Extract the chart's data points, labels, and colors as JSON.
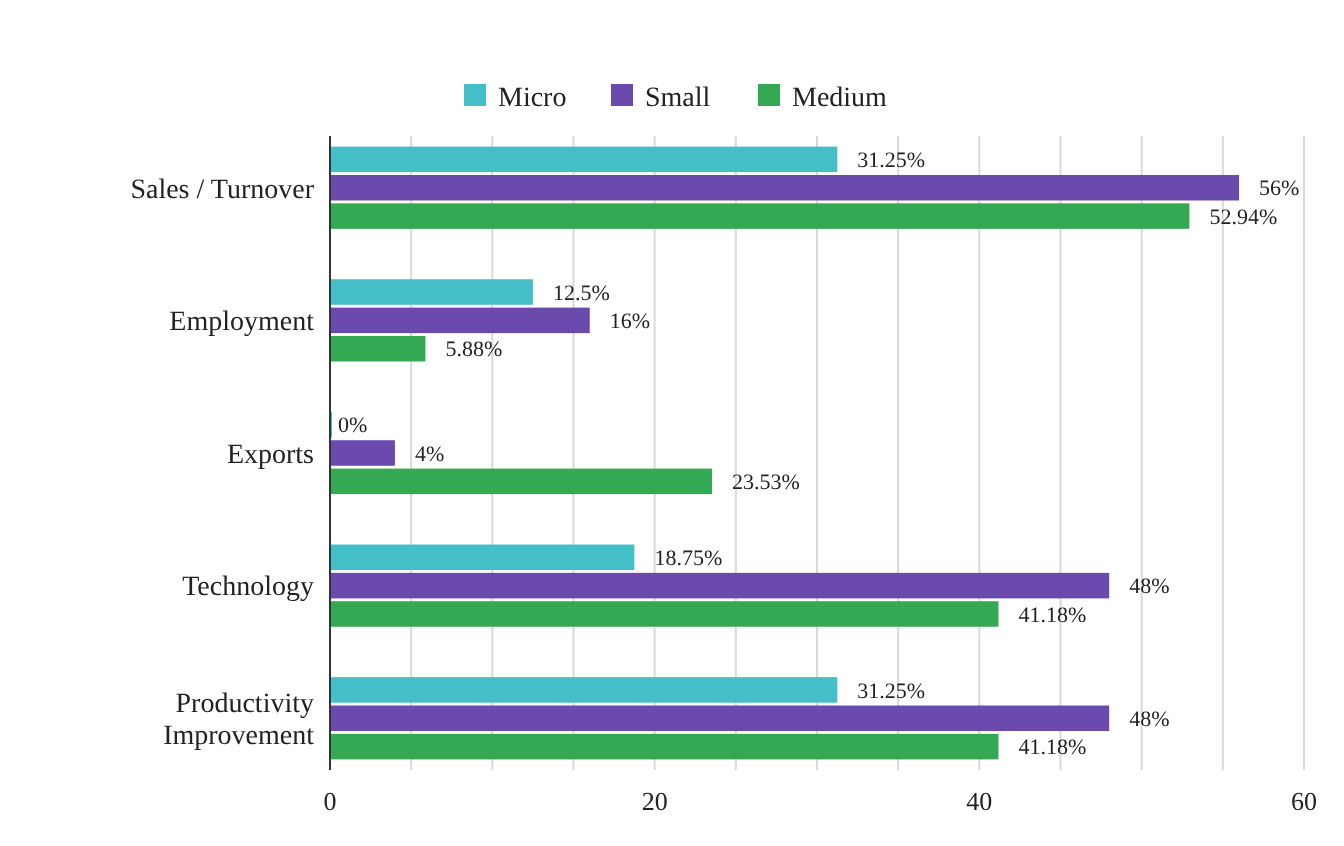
{
  "chart_data": {
    "type": "bar",
    "orientation": "horizontal",
    "categories": [
      "Sales / Turnover",
      "Employment",
      "Exports",
      "Technology",
      "Productivity Improvement"
    ],
    "series": [
      {
        "name": "Micro",
        "color": "#45bfc7",
        "values": [
          31.25,
          12.5,
          0,
          18.75,
          31.25
        ],
        "value_labels": [
          "31.25%",
          "12.5%",
          "0%",
          "18.75%",
          "31.25%"
        ]
      },
      {
        "name": "Small",
        "color": "#6a4aad",
        "values": [
          56,
          16,
          4,
          48,
          48
        ],
        "value_labels": [
          "56%",
          "16%",
          "4%",
          "48%",
          "48%"
        ]
      },
      {
        "name": "Medium",
        "color": "#34a853",
        "values": [
          52.94,
          5.88,
          23.53,
          41.18,
          41.18
        ],
        "value_labels": [
          "52.94%",
          "5.88%",
          "23.53%",
          "41.18%",
          "41.18%"
        ]
      }
    ],
    "xlim": [
      0,
      60
    ],
    "xticks": [
      0,
      {
        "value": 5,
        "label": null
      },
      {
        "value": 10,
        "label": null
      },
      {
        "value": 15,
        "label": null
      },
      20,
      {
        "value": 25,
        "label": null
      },
      {
        "value": 30,
        "label": null
      },
      {
        "value": 35,
        "label": null
      },
      40,
      {
        "value": 45,
        "label": null
      },
      {
        "value": 50,
        "label": null
      },
      {
        "value": 55,
        "label": null
      },
      60
    ],
    "grid": true,
    "legend": "top"
  }
}
